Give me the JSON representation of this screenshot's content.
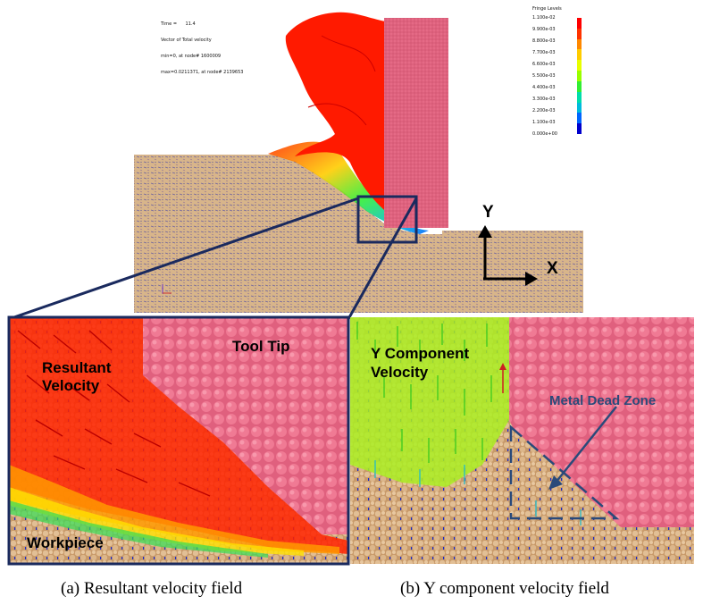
{
  "sim_info": {
    "time": "Time =      11.4",
    "vector": "Vector of Total velocity",
    "min": "min=0, at node# 1600009",
    "max": "max=0.0211371, at node# 2139653"
  },
  "legend": {
    "title": "Fringe Levels",
    "values": [
      "1.100e-02",
      "9.900e-03",
      "8.800e-03",
      "7.700e-03",
      "6.600e-03",
      "5.500e-03",
      "4.400e-03",
      "3.300e-03",
      "2.200e-03",
      "1.100e-03",
      "0.000e+00"
    ],
    "colors": [
      "#ff0000",
      "#ff3300",
      "#ff8800",
      "#ffcc00",
      "#e8ff00",
      "#99ff00",
      "#33ee33",
      "#00ddaa",
      "#00bbdd",
      "#0066ff",
      "#0000cc"
    ]
  },
  "axes": {
    "y": "Y",
    "x": "X"
  },
  "labels": {
    "resultant_velocity": "Resultant Velocity",
    "tool_tip": "Tool Tip",
    "workpiece": "Workpiece",
    "y_component_velocity": "Y Component Velocity",
    "metal_dead_zone": "Metal Dead Zone"
  },
  "captions": {
    "a": "(a) Resultant velocity field",
    "b": "(b) Y component velocity field"
  },
  "colors": {
    "tool": "#e05a78",
    "chip": "#ff1a00",
    "workpiece": "#d8b58a",
    "frame": "#1a2a5e",
    "dead_zone": "#2a4a7a"
  }
}
